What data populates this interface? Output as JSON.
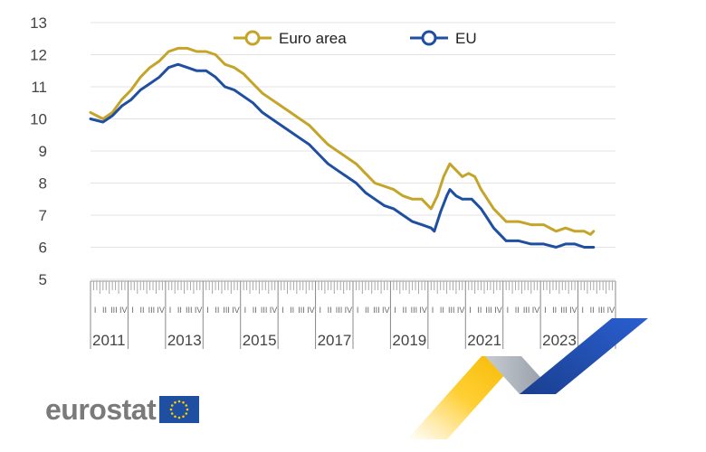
{
  "chart_data": {
    "type": "line",
    "title": "",
    "xlabel": "",
    "ylabel": "",
    "ylim": [
      5,
      13
    ],
    "yticks": [
      5,
      6,
      7,
      8,
      9,
      10,
      11,
      12,
      13
    ],
    "xtick_labels": [
      "2011",
      "2013",
      "2015",
      "2017",
      "2019",
      "2021",
      "2023"
    ],
    "quarter_labels": [
      "I",
      "II",
      "III",
      "IV"
    ],
    "x_range": [
      "2011-Q1",
      "2024-Q4"
    ],
    "grid": true,
    "legend": "top-center",
    "series": [
      {
        "name": "Euro area",
        "color": "#c4a52a",
        "points": [
          [
            "2011-01",
            10.2
          ],
          [
            "2011-03",
            10.1
          ],
          [
            "2011-05",
            10.0
          ],
          [
            "2011-08",
            10.2
          ],
          [
            "2011-11",
            10.6
          ],
          [
            "2012-02",
            10.9
          ],
          [
            "2012-05",
            11.3
          ],
          [
            "2012-08",
            11.6
          ],
          [
            "2012-11",
            11.8
          ],
          [
            "2013-02",
            12.1
          ],
          [
            "2013-05",
            12.2
          ],
          [
            "2013-08",
            12.2
          ],
          [
            "2013-11",
            12.1
          ],
          [
            "2014-02",
            12.1
          ],
          [
            "2014-05",
            12.0
          ],
          [
            "2014-08",
            11.7
          ],
          [
            "2014-11",
            11.6
          ],
          [
            "2015-02",
            11.4
          ],
          [
            "2015-05",
            11.1
          ],
          [
            "2015-08",
            10.8
          ],
          [
            "2015-11",
            10.6
          ],
          [
            "2016-02",
            10.4
          ],
          [
            "2016-05",
            10.2
          ],
          [
            "2016-08",
            10.0
          ],
          [
            "2016-11",
            9.8
          ],
          [
            "2017-02",
            9.5
          ],
          [
            "2017-05",
            9.2
          ],
          [
            "2017-08",
            9.0
          ],
          [
            "2017-11",
            8.8
          ],
          [
            "2018-02",
            8.6
          ],
          [
            "2018-05",
            8.3
          ],
          [
            "2018-08",
            8.0
          ],
          [
            "2018-11",
            7.9
          ],
          [
            "2019-02",
            7.8
          ],
          [
            "2019-05",
            7.6
          ],
          [
            "2019-08",
            7.5
          ],
          [
            "2019-11",
            7.5
          ],
          [
            "2020-02",
            7.2
          ],
          [
            "2020-04",
            7.6
          ],
          [
            "2020-06",
            8.2
          ],
          [
            "2020-08",
            8.6
          ],
          [
            "2020-10",
            8.4
          ],
          [
            "2020-12",
            8.2
          ],
          [
            "2021-02",
            8.3
          ],
          [
            "2021-04",
            8.2
          ],
          [
            "2021-06",
            7.8
          ],
          [
            "2021-08",
            7.5
          ],
          [
            "2021-10",
            7.2
          ],
          [
            "2021-12",
            7.0
          ],
          [
            "2022-02",
            6.8
          ],
          [
            "2022-06",
            6.8
          ],
          [
            "2022-10",
            6.7
          ],
          [
            "2023-02",
            6.7
          ],
          [
            "2023-06",
            6.5
          ],
          [
            "2023-09",
            6.6
          ],
          [
            "2023-12",
            6.5
          ],
          [
            "2024-03",
            6.5
          ],
          [
            "2024-05",
            6.4
          ],
          [
            "2024-06",
            6.5
          ]
        ]
      },
      {
        "name": "EU",
        "color": "#1f4fa0",
        "points": [
          [
            "2011-01",
            10.0
          ],
          [
            "2011-05",
            9.9
          ],
          [
            "2011-08",
            10.1
          ],
          [
            "2011-11",
            10.4
          ],
          [
            "2012-02",
            10.6
          ],
          [
            "2012-05",
            10.9
          ],
          [
            "2012-08",
            11.1
          ],
          [
            "2012-11",
            11.3
          ],
          [
            "2013-02",
            11.6
          ],
          [
            "2013-05",
            11.7
          ],
          [
            "2013-08",
            11.6
          ],
          [
            "2013-11",
            11.5
          ],
          [
            "2014-02",
            11.5
          ],
          [
            "2014-05",
            11.3
          ],
          [
            "2014-08",
            11.0
          ],
          [
            "2014-11",
            10.9
          ],
          [
            "2015-02",
            10.7
          ],
          [
            "2015-05",
            10.5
          ],
          [
            "2015-08",
            10.2
          ],
          [
            "2015-11",
            10.0
          ],
          [
            "2016-02",
            9.8
          ],
          [
            "2016-05",
            9.6
          ],
          [
            "2016-08",
            9.4
          ],
          [
            "2016-11",
            9.2
          ],
          [
            "2017-02",
            8.9
          ],
          [
            "2017-05",
            8.6
          ],
          [
            "2017-08",
            8.4
          ],
          [
            "2017-11",
            8.2
          ],
          [
            "2018-02",
            8.0
          ],
          [
            "2018-05",
            7.7
          ],
          [
            "2018-08",
            7.5
          ],
          [
            "2018-11",
            7.3
          ],
          [
            "2019-02",
            7.2
          ],
          [
            "2019-05",
            7.0
          ],
          [
            "2019-08",
            6.8
          ],
          [
            "2019-11",
            6.7
          ],
          [
            "2020-02",
            6.6
          ],
          [
            "2020-03",
            6.5
          ],
          [
            "2020-05",
            7.1
          ],
          [
            "2020-07",
            7.6
          ],
          [
            "2020-08",
            7.8
          ],
          [
            "2020-10",
            7.6
          ],
          [
            "2020-12",
            7.5
          ],
          [
            "2021-03",
            7.5
          ],
          [
            "2021-06",
            7.2
          ],
          [
            "2021-08",
            6.9
          ],
          [
            "2021-10",
            6.6
          ],
          [
            "2021-12",
            6.4
          ],
          [
            "2022-02",
            6.2
          ],
          [
            "2022-06",
            6.2
          ],
          [
            "2022-10",
            6.1
          ],
          [
            "2023-02",
            6.1
          ],
          [
            "2023-06",
            6.0
          ],
          [
            "2023-09",
            6.1
          ],
          [
            "2023-12",
            6.1
          ],
          [
            "2024-03",
            6.0
          ],
          [
            "2024-06",
            6.0
          ]
        ]
      }
    ]
  },
  "brand": {
    "name": "eurostat",
    "flag_color": "#1f4fa0",
    "star_color": "#ffcc00"
  }
}
